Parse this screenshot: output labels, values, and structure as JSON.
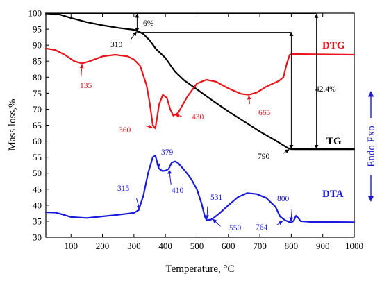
{
  "chart_data": {
    "type": "line",
    "xlabel": "Temperature, °C",
    "ylabel": "Mass loss,%",
    "right_ylabel": "Endo Exo",
    "xlim": [
      20,
      1000
    ],
    "ylim": [
      30,
      100
    ],
    "x_ticks": [
      "100",
      "200",
      "300",
      "400",
      "500",
      "600",
      "700",
      "800",
      "900",
      "1000"
    ],
    "y_ticks": [
      "30",
      "35",
      "40",
      "45",
      "50",
      "55",
      "60",
      "65",
      "70",
      "75",
      "80",
      "85",
      "90",
      "95",
      "100"
    ],
    "grid": false,
    "colors": {
      "TG": "#000000",
      "DTG": "#e8141b",
      "DTA": "#1a1adb",
      "axis_right": "#1a1adb"
    },
    "series": [
      {
        "name": "TG",
        "x": [
          20,
          60,
          100,
          150,
          200,
          250,
          300,
          310,
          330,
          350,
          370,
          400,
          430,
          460,
          500,
          550,
          600,
          650,
          700,
          750,
          790,
          800,
          850,
          900,
          950,
          1000
        ],
        "y": [
          99.9,
          99.7,
          98.5,
          97.2,
          96.2,
          95.4,
          94.8,
          94.5,
          93.5,
          91.5,
          88.8,
          86.0,
          81.8,
          79.0,
          76.2,
          72.7,
          69.3,
          66.2,
          63.0,
          60.2,
          57.8,
          57.5,
          57.5,
          57.5,
          57.5,
          57.5
        ]
      },
      {
        "name": "DTG",
        "x": [
          20,
          50,
          80,
          110,
          135,
          160,
          200,
          240,
          280,
          300,
          320,
          340,
          350,
          360,
          368,
          380,
          392,
          405,
          415,
          425,
          440,
          470,
          500,
          530,
          560,
          600,
          640,
          665,
          690,
          720,
          760,
          775,
          785,
          795,
          800,
          830,
          900,
          1000
        ],
        "y": [
          89,
          88.5,
          87,
          85,
          84.3,
          85,
          86.5,
          87,
          86.5,
          85.5,
          83.5,
          77.5,
          72,
          65,
          64,
          71.5,
          74.5,
          73.5,
          70,
          68,
          68.8,
          74,
          78,
          79.2,
          78.6,
          76.5,
          74.8,
          74.5,
          75.2,
          77,
          78.8,
          80,
          84,
          87,
          87.2,
          87.2,
          87.1,
          87.0
        ]
      },
      {
        "name": "DTA",
        "x": [
          20,
          50,
          70,
          100,
          150,
          200,
          250,
          300,
          315,
          330,
          345,
          360,
          368,
          379,
          390,
          400,
          410,
          420,
          430,
          440,
          460,
          480,
          500,
          515,
          525,
          531,
          545,
          550,
          570,
          600,
          630,
          660,
          690,
          720,
          750,
          764,
          780,
          795,
          800,
          808,
          815,
          822,
          830,
          860,
          900,
          1000
        ],
        "y": [
          37.8,
          37.7,
          37.2,
          36.3,
          36.0,
          36.5,
          37.0,
          37.6,
          38.5,
          43,
          50,
          55,
          55.5,
          51.5,
          50.7,
          50.8,
          51.3,
          53.3,
          53.7,
          53.2,
          51,
          48.5,
          45,
          40.5,
          36.5,
          35.3,
          35.5,
          35.8,
          37.3,
          40,
          42.5,
          43.8,
          43.5,
          42.3,
          39.5,
          36.5,
          35.3,
          34.7,
          34.6,
          35.2,
          36.7,
          36.0,
          35.0,
          34.8,
          34.8,
          34.7
        ]
      }
    ],
    "series_labels": [
      {
        "text": "DTG",
        "series": "DTG"
      },
      {
        "text": "TG",
        "series": "TG"
      },
      {
        "text": "DTA",
        "series": "DTA"
      }
    ],
    "annotations": {
      "tg_step": "6%",
      "tg_total": "42.4%",
      "tg_310": "310",
      "tg_790": "790",
      "dtg_135": "135",
      "dtg_360": "360",
      "dtg_430": "430",
      "dtg_665": "665",
      "dta_315": "315",
      "dta_379": "379",
      "dta_410": "410",
      "dta_531": "531",
      "dta_550": "550",
      "dta_764": "764",
      "dta_800": "800"
    }
  }
}
